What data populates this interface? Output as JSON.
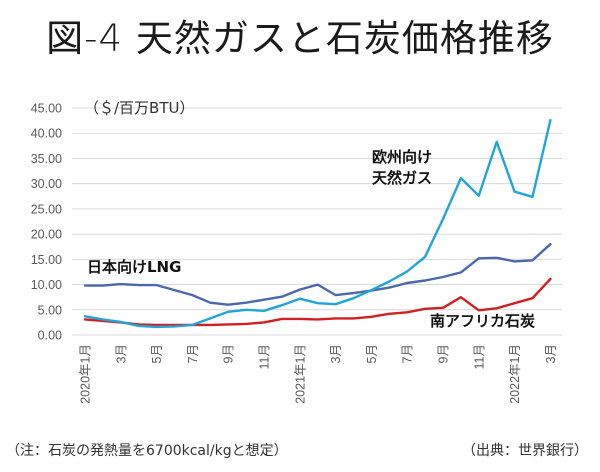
{
  "title": "図-4 天然ガスと石炭価格推移",
  "notes": {
    "left": "（注：石炭の発熱量を6700kcal/kgと想定）",
    "right": "（出典：世界銀行）"
  },
  "chart_data": {
    "type": "line",
    "title": "図-4 天然ガスと石炭価格推移",
    "ylabel": "（＄/百万BTU）",
    "xlabel": "",
    "ylim": [
      0,
      45
    ],
    "yticks": [
      "0.00",
      "5.00",
      "10.00",
      "15.00",
      "20.00",
      "25.00",
      "30.00",
      "35.00",
      "40.00",
      "45.00"
    ],
    "ytick_values": [
      0,
      5,
      10,
      15,
      20,
      25,
      30,
      35,
      40,
      45
    ],
    "grid": true,
    "x": [
      "2020-01",
      "2020-02",
      "2020-03",
      "2020-04",
      "2020-05",
      "2020-06",
      "2020-07",
      "2020-08",
      "2020-09",
      "2020-10",
      "2020-11",
      "2020-12",
      "2021-01",
      "2021-02",
      "2021-03",
      "2021-04",
      "2021-05",
      "2021-06",
      "2021-07",
      "2021-08",
      "2021-09",
      "2021-10",
      "2021-11",
      "2021-12",
      "2022-01",
      "2022-02",
      "2022-03"
    ],
    "xtick_labels": [
      {
        "index": 0,
        "label": "2020年1月"
      },
      {
        "index": 2,
        "label": "3月"
      },
      {
        "index": 4,
        "label": "5月"
      },
      {
        "index": 6,
        "label": "7月"
      },
      {
        "index": 8,
        "label": "9月"
      },
      {
        "index": 10,
        "label": "11月"
      },
      {
        "index": 12,
        "label": "2021年1月"
      },
      {
        "index": 14,
        "label": "3月"
      },
      {
        "index": 16,
        "label": "5月"
      },
      {
        "index": 18,
        "label": "7月"
      },
      {
        "index": 20,
        "label": "9月"
      },
      {
        "index": 22,
        "label": "11月"
      },
      {
        "index": 24,
        "label": "2022年1月"
      },
      {
        "index": 26,
        "label": "3月"
      }
    ],
    "series": [
      {
        "name": "欧州向け天然ガス",
        "label_lines": [
          "欧州向け",
          "天然ガス"
        ],
        "color": "#21a5d8",
        "values": [
          3.7,
          3.1,
          2.6,
          1.8,
          1.6,
          1.7,
          2.0,
          3.3,
          4.6,
          5.0,
          4.8,
          5.9,
          7.2,
          6.3,
          6.1,
          7.3,
          8.9,
          10.6,
          12.6,
          15.5,
          23.0,
          31.1,
          27.6,
          38.3,
          28.4,
          27.4,
          42.6
        ]
      },
      {
        "name": "日本向けLNG",
        "label_lines": [
          "日本向けLNG"
        ],
        "color": "#4a68ad",
        "values": [
          9.8,
          9.8,
          10.1,
          9.9,
          9.9,
          8.9,
          7.9,
          6.4,
          6.0,
          6.4,
          7.0,
          7.6,
          9.0,
          10.0,
          7.9,
          8.3,
          8.8,
          9.4,
          10.3,
          10.8,
          11.5,
          12.4,
          15.2,
          15.3,
          14.6,
          14.8,
          18.0
        ]
      },
      {
        "name": "南アフリカ石炭",
        "label_lines": [
          "南アフリカ石炭"
        ],
        "color": "#d21f1f",
        "values": [
          3.1,
          2.8,
          2.5,
          2.1,
          2.0,
          2.0,
          2.0,
          2.0,
          2.1,
          2.2,
          2.5,
          3.2,
          3.2,
          3.1,
          3.3,
          3.3,
          3.6,
          4.2,
          4.5,
          5.2,
          5.4,
          7.5,
          4.9,
          5.3,
          6.3,
          7.3,
          11.1
        ]
      }
    ]
  }
}
